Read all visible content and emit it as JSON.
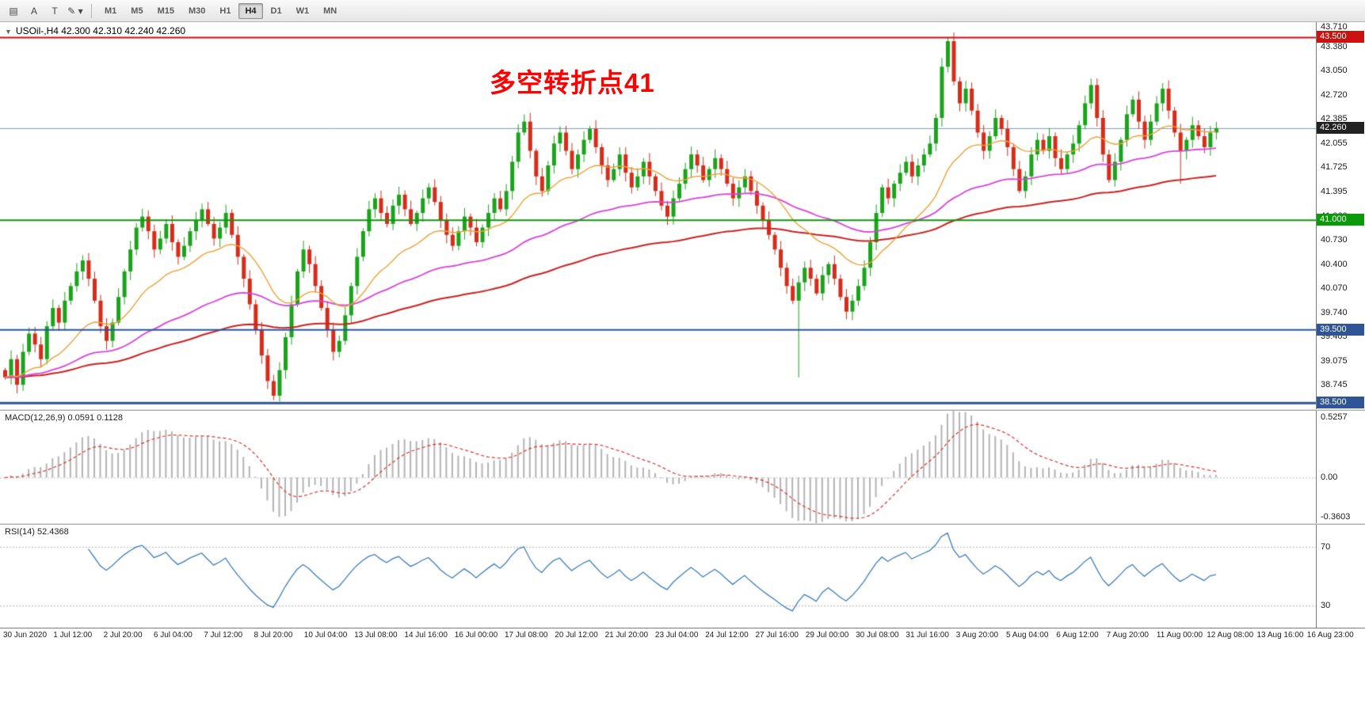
{
  "toolbar": {
    "left_buttons": [
      {
        "id": "indicator-list",
        "glyph": "▤"
      },
      {
        "id": "text-label",
        "glyph": "A"
      },
      {
        "id": "text-box",
        "glyph": "T"
      },
      {
        "id": "draw-tools",
        "glyph": "✎",
        "caret": "▾"
      }
    ],
    "timeframes": [
      "M1",
      "M5",
      "M15",
      "M30",
      "H1",
      "H4",
      "D1",
      "W1",
      "MN"
    ],
    "active_timeframe": "H4"
  },
  "header": {
    "collapse_glyph": "▼",
    "symbol_line": "USOil-,H4  42.300 42.310 42.240 42.260"
  },
  "annotation": {
    "text": "多空转折点41",
    "color": "#ff0000"
  },
  "price_axis": {
    "labels": [
      "43.710",
      "43.380",
      "43.050",
      "42.720",
      "42.385",
      "42.055",
      "41.725",
      "41.395",
      "41.060",
      "40.730",
      "40.400",
      "40.070",
      "39.740",
      "39.405",
      "39.075",
      "38.745",
      "38.415"
    ]
  },
  "chart_data": {
    "type": "candlestick",
    "symbol": "USOil-",
    "timeframe": "H4",
    "price_range": {
      "max": 43.71,
      "min": 38.415
    },
    "first_open": 38.95,
    "closes": [
      38.85,
      39.1,
      38.75,
      39.2,
      39.45,
      39.3,
      39.1,
      39.55,
      39.8,
      39.6,
      39.9,
      40.1,
      40.3,
      40.45,
      40.2,
      39.9,
      39.55,
      39.35,
      39.6,
      39.95,
      40.3,
      40.6,
      40.9,
      41.05,
      40.85,
      40.6,
      40.75,
      40.95,
      40.7,
      40.5,
      40.65,
      40.85,
      41.0,
      41.15,
      40.95,
      40.75,
      40.9,
      41.1,
      40.8,
      40.5,
      40.2,
      39.85,
      39.5,
      39.15,
      38.8,
      38.6,
      38.95,
      39.4,
      39.85,
      40.3,
      40.6,
      40.4,
      40.1,
      39.8,
      39.5,
      39.2,
      39.35,
      39.7,
      40.1,
      40.5,
      40.85,
      41.15,
      41.3,
      41.1,
      40.95,
      41.2,
      41.35,
      41.15,
      40.95,
      41.1,
      41.3,
      41.45,
      41.25,
      41.0,
      40.8,
      40.65,
      40.85,
      41.05,
      40.9,
      40.7,
      40.9,
      41.1,
      41.3,
      41.15,
      41.4,
      41.8,
      42.2,
      42.35,
      41.95,
      41.6,
      41.4,
      41.75,
      42.05,
      42.2,
      41.95,
      41.7,
      41.9,
      42.1,
      42.25,
      42.0,
      41.75,
      41.55,
      41.7,
      41.9,
      41.65,
      41.45,
      41.6,
      41.8,
      41.6,
      41.4,
      41.2,
      41.05,
      41.3,
      41.5,
      41.7,
      41.9,
      41.75,
      41.55,
      41.7,
      41.85,
      41.7,
      41.5,
      41.3,
      41.45,
      41.6,
      41.4,
      41.2,
      41.0,
      40.8,
      40.6,
      40.35,
      40.1,
      39.9,
      40.15,
      40.35,
      40.2,
      40.0,
      40.25,
      40.4,
      40.2,
      39.95,
      39.75,
      39.9,
      40.1,
      40.35,
      40.7,
      41.1,
      41.45,
      41.3,
      41.5,
      41.65,
      41.8,
      41.6,
      41.75,
      41.9,
      42.05,
      42.4,
      43.1,
      43.45,
      42.9,
      42.6,
      42.8,
      42.5,
      42.2,
      41.95,
      42.15,
      42.4,
      42.25,
      42.0,
      41.7,
      41.4,
      41.6,
      41.9,
      42.1,
      41.95,
      42.15,
      41.85,
      41.7,
      41.9,
      42.05,
      42.3,
      42.6,
      42.85,
      42.4,
      41.9,
      41.55,
      41.8,
      42.1,
      42.45,
      42.65,
      42.35,
      42.1,
      42.35,
      42.6,
      42.8,
      42.5,
      42.2,
      41.95,
      42.1,
      42.3,
      42.15,
      42.0,
      42.2,
      42.26
    ],
    "wick_overrides": {
      "45": {
        "low": 38.54
      },
      "87": {
        "high": 42.45
      },
      "133": {
        "low": 38.85
      },
      "158": {
        "high": 43.5
      },
      "197": {
        "low": 41.5
      }
    },
    "hlines": [
      {
        "price": 43.5,
        "label": "43.500",
        "color": "#cc1111",
        "width": 2
      },
      {
        "price": 41.0,
        "label": "41.000",
        "color": "#0a9a0a",
        "width": 2
      },
      {
        "price": 39.5,
        "label": "39.500",
        "color": "#2f5597",
        "width": 2
      },
      {
        "price": 38.5,
        "label": "38.500",
        "color": "#2f5597",
        "width": 3
      }
    ],
    "current_price": {
      "value": 42.26,
      "label": "42.260",
      "badge_color": "#222222",
      "line_color": "#7a9cc4"
    },
    "colors": {
      "up": "#1ba31b",
      "down": "#d62c1a",
      "ma_fast": "#eea236",
      "ma_mid": "#d944d9",
      "ma_slow": "#cc2222",
      "background": "#ffffff"
    },
    "ma_periods": {
      "fast": 20,
      "mid": 60,
      "slow": 120
    },
    "macd": {
      "label": "MACD(12,26,9) 0.0591 0.1128",
      "fast": 12,
      "slow": 26,
      "signal": 9,
      "axis_labels": [
        "0.5257",
        "0.00",
        "-0.3603"
      ],
      "max": 0.5257,
      "min": -0.3603,
      "hist_color": "#b4b4b4",
      "signal_color": "#e03030"
    },
    "rsi": {
      "label": "RSI(14) 52.4368",
      "period": 14,
      "levels": [
        70,
        30
      ],
      "axis_labels": [
        "70",
        "30"
      ],
      "max": 85,
      "min": 15,
      "color": "#3f7ec0",
      "level_color": "#b8b8b8"
    },
    "time_labels": [
      "30 Jun 2020",
      "1 Jul 12:00",
      "2 Jul 20:00",
      "6 Jul 04:00",
      "7 Jul 12:00",
      "8 Jul 20:00",
      "10 Jul 04:00",
      "13 Jul 08:00",
      "14 Jul 16:00",
      "16 Jul 00:00",
      "17 Jul 08:00",
      "20 Jul 12:00",
      "21 Jul 20:00",
      "23 Jul 04:00",
      "24 Jul 12:00",
      "27 Jul 16:00",
      "29 Jul 00:00",
      "30 Jul 08:00",
      "31 Jul 16:00",
      "3 Aug 20:00",
      "5 Aug 04:00",
      "6 Aug 12:00",
      "7 Aug 20:00",
      "11 Aug 00:00",
      "12 Aug 08:00",
      "13 Aug 16:00",
      "16 Aug 23:00"
    ]
  }
}
